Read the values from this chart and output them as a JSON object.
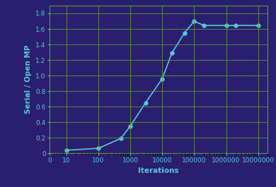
{
  "x": [
    10,
    100,
    500,
    1000,
    3000,
    10000,
    20000,
    50000,
    100000,
    200000,
    1000000,
    2000000,
    10000000
  ],
  "y": [
    0.04,
    0.065,
    0.19,
    0.35,
    0.65,
    0.96,
    1.29,
    1.55,
    1.7,
    1.645,
    1.645,
    1.645,
    1.645
  ],
  "line_color": "#5bc8d9",
  "marker_color": "#5bc8d9",
  "background_color": "#2a1f6e",
  "grid_color": "#5a9a3a",
  "axis_label_color": "#5bc8d9",
  "tick_label_color": "#5bc8d9",
  "ylabel": "Serial / Open MP",
  "xlabel": "Iterations",
  "ylim": [
    0,
    1.9
  ],
  "yticks": [
    0,
    0.2,
    0.4,
    0.6,
    0.8,
    1.0,
    1.2,
    1.4,
    1.6,
    1.8
  ],
  "xtick_labels": [
    "0",
    "10",
    "100",
    "1000",
    "10000",
    "100000",
    "1000000",
    "10000000"
  ],
  "xtick_values": [
    3,
    10,
    100,
    1000,
    10000,
    100000,
    1000000,
    10000000
  ],
  "xlim": [
    3,
    20000000
  ]
}
